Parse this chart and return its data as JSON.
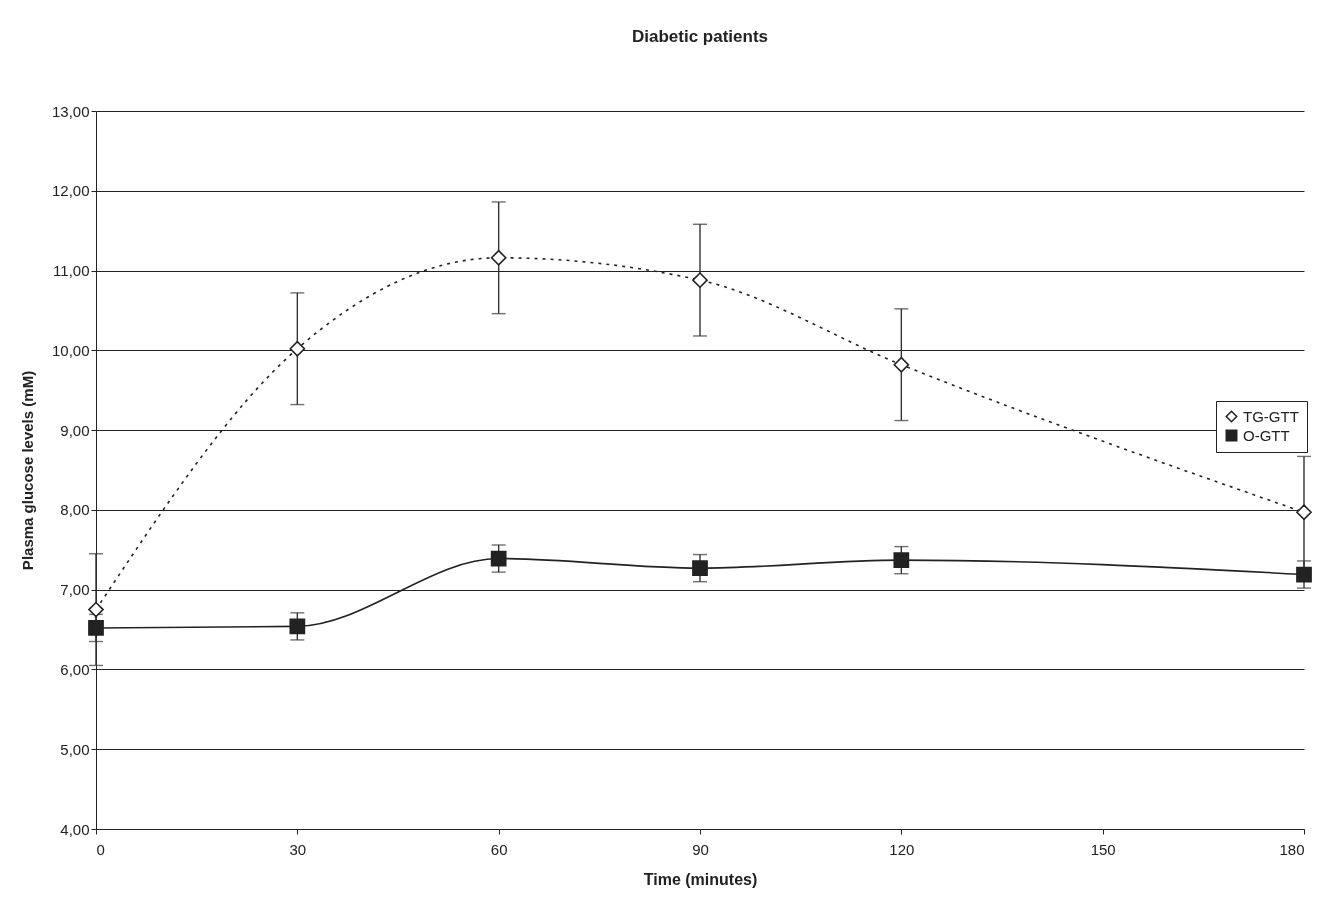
{
  "chart_data": {
    "type": "line",
    "title": "Diabetic patients",
    "xlabel": "Time (minutes)",
    "ylabel": "Plasma glucose levels (mM)",
    "x": [
      0,
      30,
      60,
      90,
      120,
      180
    ],
    "series": [
      {
        "name": "TG-GTT",
        "color": "#222222",
        "marker": "diamond",
        "line_style": "dotted",
        "values": [
          6.75,
          10.02,
          11.16,
          10.88,
          9.82,
          7.97
        ],
        "errors": [
          0.7,
          0.7,
          0.7,
          0.7,
          0.7,
          0.7
        ]
      },
      {
        "name": "O-GTT",
        "color": "#222222",
        "marker": "square",
        "line_style": "solid",
        "values": [
          6.52,
          6.54,
          7.39,
          7.27,
          7.37,
          7.19
        ],
        "errors": [
          0.17,
          0.17,
          0.17,
          0.17,
          0.17,
          0.17
        ]
      }
    ],
    "xlim": [
      0,
      180
    ],
    "xticks": [
      0,
      30,
      60,
      90,
      120,
      150,
      180
    ],
    "ylim": [
      4,
      13
    ],
    "yticks": [
      {
        "value": 4,
        "label": "4,00"
      },
      {
        "value": 5,
        "label": "5,00"
      },
      {
        "value": 6,
        "label": "6,00"
      },
      {
        "value": 7,
        "label": "7,00"
      },
      {
        "value": 8,
        "label": "8,00"
      },
      {
        "value": 9,
        "label": "9,00"
      },
      {
        "value": 10,
        "label": "10,00"
      },
      {
        "value": 11,
        "label": "11,00"
      },
      {
        "value": 12,
        "label": "12,00"
      },
      {
        "value": 13,
        "label": "13,00"
      }
    ],
    "grid": "y",
    "legend": "right"
  }
}
